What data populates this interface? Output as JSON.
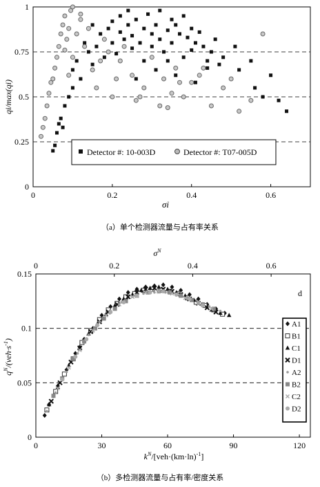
{
  "captions": {
    "a": "（a）单个检测器流量与占有率关系",
    "b": "（b）多检测器流量与占有率/密度关系"
  },
  "chart_data": [
    {
      "type": "scatter",
      "panel_caption": "（a）单个检测器流量与占有率关系",
      "title": "",
      "xlabel": "σi",
      "ylabel": "qi/max(qi)",
      "xlim": [
        0,
        0.7
      ],
      "ylim": [
        0,
        1
      ],
      "x_ticks": [
        "0",
        "0.2",
        "0.4",
        "0.6"
      ],
      "y_ticks": [
        "0",
        "0.25",
        "0.5",
        "0.75",
        "1"
      ],
      "grid": "dashed horizontal lines at 0.25, 0.5, 0.75, 1",
      "legend_position": "lower-center",
      "series": [
        {
          "name": "Detector #: 10-003D",
          "marker": "filled-square",
          "color": "#111111",
          "x": [
            0.05,
            0.055,
            0.06,
            0.065,
            0.07,
            0.075,
            0.08,
            0.09,
            0.1,
            0.1,
            0.11,
            0.12,
            0.13,
            0.14,
            0.15,
            0.15,
            0.16,
            0.17,
            0.18,
            0.19,
            0.2,
            0.2,
            0.21,
            0.22,
            0.22,
            0.23,
            0.24,
            0.25,
            0.25,
            0.26,
            0.27,
            0.28,
            0.28,
            0.29,
            0.3,
            0.3,
            0.31,
            0.32,
            0.32,
            0.33,
            0.34,
            0.35,
            0.35,
            0.36,
            0.37,
            0.38,
            0.38,
            0.39,
            0.4,
            0.4,
            0.41,
            0.42,
            0.43,
            0.44,
            0.45,
            0.46,
            0.47,
            0.48,
            0.5,
            0.51,
            0.52,
            0.55,
            0.56,
            0.58,
            0.6,
            0.62,
            0.64,
            0.24,
            0.26,
            0.31,
            0.34,
            0.36,
            0.41,
            0.44
          ],
          "y": [
            0.2,
            0.23,
            0.3,
            0.35,
            0.38,
            0.33,
            0.45,
            0.5,
            0.55,
            0.65,
            0.7,
            0.6,
            0.8,
            0.75,
            0.9,
            0.68,
            0.78,
            0.85,
            0.72,
            0.88,
            0.92,
            0.8,
            0.74,
            0.86,
            0.95,
            0.82,
            0.9,
            0.84,
            0.77,
            0.93,
            0.8,
            0.88,
            0.7,
            0.96,
            0.85,
            0.78,
            0.9,
            0.82,
            0.98,
            0.75,
            0.87,
            0.93,
            0.8,
            0.9,
            0.85,
            0.72,
            0.95,
            0.83,
            0.88,
            0.76,
            0.8,
            0.86,
            0.78,
            0.7,
            0.75,
            0.82,
            0.68,
            0.72,
            0.6,
            0.78,
            0.65,
            0.7,
            0.55,
            0.5,
            0.62,
            0.48,
            0.42,
            0.98,
            0.6,
            0.65,
            0.7,
            0.62,
            0.58,
            0.66
          ]
        },
        {
          "name": "Detector #: T07-005D",
          "marker": "open-circle",
          "color": "#666666",
          "x": [
            0.02,
            0.025,
            0.03,
            0.035,
            0.04,
            0.045,
            0.05,
            0.055,
            0.06,
            0.065,
            0.07,
            0.075,
            0.08,
            0.085,
            0.09,
            0.095,
            0.1,
            0.1,
            0.11,
            0.12,
            0.13,
            0.14,
            0.15,
            0.16,
            0.17,
            0.18,
            0.2,
            0.21,
            0.22,
            0.23,
            0.25,
            0.26,
            0.28,
            0.3,
            0.32,
            0.33,
            0.35,
            0.36,
            0.38,
            0.4,
            0.42,
            0.45,
            0.48,
            0.5,
            0.52,
            0.55,
            0.58,
            0.08,
            0.09,
            0.12,
            0.19,
            0.27,
            0.34,
            0.37,
            0.43
          ],
          "y": [
            0.28,
            0.33,
            0.38,
            0.45,
            0.52,
            0.58,
            0.6,
            0.66,
            0.72,
            0.78,
            0.85,
            0.9,
            0.95,
            0.82,
            0.88,
            0.98,
            1.0,
            0.72,
            0.85,
            0.93,
            0.78,
            0.88,
            0.65,
            0.55,
            0.7,
            0.82,
            0.5,
            0.6,
            0.7,
            0.78,
            0.62,
            0.48,
            0.55,
            0.72,
            0.45,
            0.6,
            0.52,
            0.66,
            0.5,
            0.58,
            0.62,
            0.45,
            0.55,
            0.6,
            0.42,
            0.48,
            0.85,
            0.76,
            0.62,
            0.96,
            0.75,
            0.5,
            0.44,
            0.58,
            0.66
          ]
        }
      ]
    },
    {
      "type": "scatter",
      "panel_caption": "（b）多检测器流量与占有率/密度关系",
      "title": "",
      "xlabel": "k^N/[veh·(km·ln)^-1]",
      "ylabel": "q^N/(veh·s^-1)",
      "x2label": "σ^N",
      "xlim": [
        0,
        125
      ],
      "ylim": [
        0,
        0.15
      ],
      "x2lim": [
        0,
        0.7
      ],
      "x_ticks": [
        "0",
        "30",
        "60",
        "90",
        "120"
      ],
      "x2_ticks": [
        "0",
        "0.2",
        "0.4",
        "0.6"
      ],
      "y_ticks": [
        "0",
        "0.05",
        "0.1",
        "0.15"
      ],
      "grid": "dashed horizontal lines at 0.05, 0.1",
      "corner_label": "d",
      "legend_position": "right",
      "series": [
        {
          "name": "A1",
          "marker": "filled-diamond",
          "color": "#111111",
          "x": [
            4,
            6,
            8,
            10,
            14,
            18,
            22,
            26,
            30,
            34,
            38,
            42,
            46,
            50,
            54,
            58,
            62,
            66,
            70,
            74,
            78,
            82,
            86
          ],
          "y": [
            0.02,
            0.03,
            0.038,
            0.047,
            0.062,
            0.077,
            0.09,
            0.1,
            0.112,
            0.12,
            0.127,
            0.133,
            0.136,
            0.138,
            0.139,
            0.14,
            0.138,
            0.135,
            0.131,
            0.127,
            0.122,
            0.118,
            0.114
          ]
        },
        {
          "name": "B1",
          "marker": "open-square",
          "color": "#333333",
          "x": [
            5,
            9,
            13,
            17,
            21,
            25,
            29,
            33,
            37,
            41,
            45,
            49,
            53,
            57,
            61,
            65,
            69,
            73,
            77,
            81,
            85
          ],
          "y": [
            0.025,
            0.042,
            0.058,
            0.072,
            0.087,
            0.098,
            0.108,
            0.117,
            0.123,
            0.129,
            0.132,
            0.135,
            0.136,
            0.135,
            0.134,
            0.132,
            0.128,
            0.124,
            0.121,
            0.117,
            0.113
          ]
        },
        {
          "name": "C1",
          "marker": "filled-triangle",
          "color": "#111111",
          "x": [
            6,
            10,
            15,
            20,
            24,
            28,
            32,
            36,
            40,
            44,
            48,
            52,
            56,
            60,
            64,
            68,
            72,
            76,
            80,
            84,
            88
          ],
          "y": [
            0.03,
            0.046,
            0.066,
            0.083,
            0.095,
            0.104,
            0.113,
            0.121,
            0.127,
            0.131,
            0.135,
            0.137,
            0.138,
            0.136,
            0.133,
            0.13,
            0.126,
            0.122,
            0.117,
            0.114,
            0.112
          ]
        },
        {
          "name": "D1",
          "marker": "filled-x",
          "color": "#111111",
          "x": [
            7,
            11,
            16,
            20,
            25,
            29,
            33,
            37,
            42,
            46,
            50,
            54,
            58,
            62,
            66,
            70,
            74,
            78,
            82
          ],
          "y": [
            0.033,
            0.05,
            0.069,
            0.082,
            0.097,
            0.106,
            0.115,
            0.122,
            0.129,
            0.133,
            0.136,
            0.137,
            0.136,
            0.134,
            0.131,
            0.127,
            0.123,
            0.119,
            0.115
          ]
        },
        {
          "name": "A2",
          "marker": "small-dot",
          "color": "#999999",
          "x": [
            5,
            9,
            14,
            19,
            24,
            29,
            34,
            39,
            44,
            49,
            54,
            59,
            64,
            69,
            74,
            79,
            84
          ],
          "y": [
            0.024,
            0.041,
            0.06,
            0.077,
            0.094,
            0.106,
            0.116,
            0.124,
            0.129,
            0.132,
            0.133,
            0.133,
            0.131,
            0.128,
            0.124,
            0.12,
            0.116
          ]
        },
        {
          "name": "B2",
          "marker": "gray-square",
          "color": "#888888",
          "x": [
            8,
            12,
            17,
            22,
            27,
            31,
            36,
            41,
            46,
            51,
            56,
            61,
            66,
            71,
            76,
            81
          ],
          "y": [
            0.038,
            0.054,
            0.072,
            0.088,
            0.1,
            0.109,
            0.118,
            0.125,
            0.13,
            0.133,
            0.134,
            0.133,
            0.13,
            0.126,
            0.122,
            0.118
          ]
        },
        {
          "name": "C2",
          "marker": "gray-x",
          "color": "#aaaaaa",
          "x": [
            10,
            15,
            20,
            26,
            32,
            38,
            44,
            50,
            56,
            62,
            68,
            74,
            80
          ],
          "y": [
            0.045,
            0.064,
            0.08,
            0.098,
            0.112,
            0.122,
            0.129,
            0.133,
            0.134,
            0.132,
            0.128,
            0.123,
            0.118
          ]
        },
        {
          "name": "D2",
          "marker": "gray-circle",
          "color": "#aaaaaa",
          "x": [
            12,
            18,
            23,
            28,
            34,
            40,
            46,
            52,
            58,
            64,
            70,
            76
          ],
          "y": [
            0.053,
            0.074,
            0.09,
            0.103,
            0.115,
            0.124,
            0.13,
            0.133,
            0.134,
            0.131,
            0.127,
            0.121
          ]
        }
      ]
    }
  ]
}
